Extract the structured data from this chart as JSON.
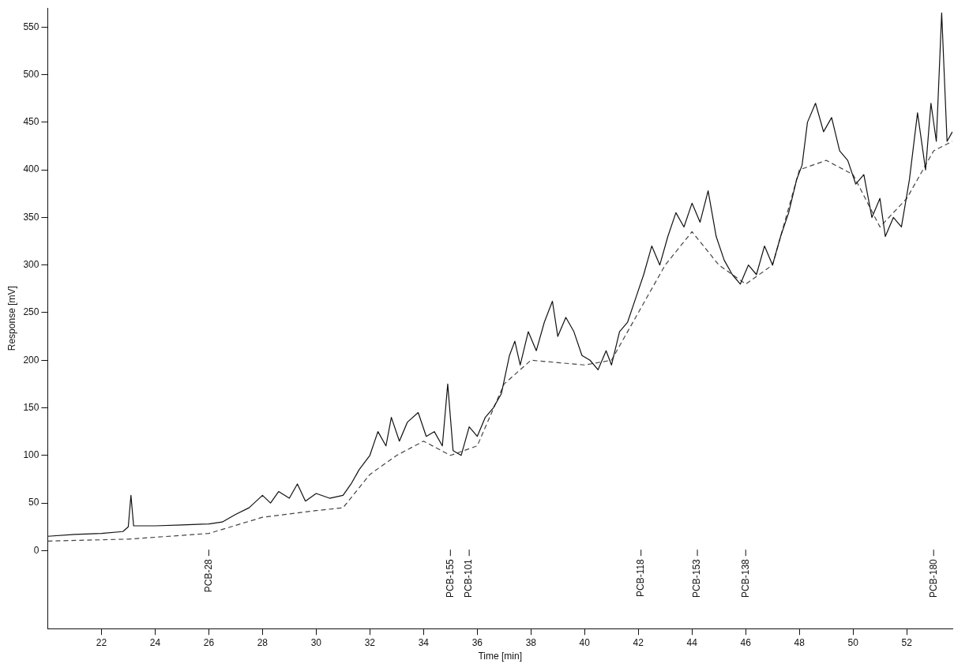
{
  "chart_data": {
    "type": "line",
    "xlabel": "Time [min]",
    "ylabel": "Response [mV]",
    "xlim": [
      20,
      53.7
    ],
    "ylim": [
      -82,
      570
    ],
    "xticks": [
      22,
      24,
      26,
      28,
      30,
      32,
      34,
      36,
      38,
      40,
      42,
      44,
      46,
      48,
      50,
      52
    ],
    "yticks": [
      0,
      50,
      100,
      150,
      200,
      250,
      300,
      350,
      400,
      450,
      500,
      550
    ],
    "grid": false,
    "legend": false,
    "marker": "none",
    "series": [
      {
        "color": "#111111",
        "line_style": "solid",
        "x": [
          20.0,
          21,
          22,
          22.8,
          23.0,
          23.1,
          23.2,
          24,
          25,
          26,
          26.5,
          27,
          27.5,
          28,
          28.3,
          28.6,
          29,
          29.3,
          29.6,
          30,
          30.5,
          31,
          31.3,
          31.6,
          32,
          32.3,
          32.6,
          32.8,
          33.1,
          33.4,
          33.8,
          34.1,
          34.4,
          34.7,
          34.9,
          35.1,
          35.4,
          35.7,
          36.0,
          36.3,
          36.6,
          36.9,
          37.2,
          37.4,
          37.6,
          37.9,
          38.2,
          38.5,
          38.8,
          39.0,
          39.3,
          39.6,
          39.9,
          40.2,
          40.5,
          40.8,
          41.0,
          41.3,
          41.6,
          41.9,
          42.2,
          42.5,
          42.8,
          43.1,
          43.4,
          43.7,
          44.0,
          44.3,
          44.6,
          44.9,
          45.2,
          45.5,
          45.8,
          46.1,
          46.4,
          46.7,
          47.0,
          47.3,
          47.6,
          47.9,
          48.1,
          48.3,
          48.6,
          48.9,
          49.2,
          49.5,
          49.8,
          50.1,
          50.4,
          50.7,
          51.0,
          51.2,
          51.5,
          51.8,
          52.1,
          52.4,
          52.7,
          52.9,
          53.1,
          53.3,
          53.5,
          53.7
        ],
        "values": [
          15,
          17,
          18,
          20,
          25,
          58,
          26,
          26,
          27,
          28,
          30,
          38,
          45,
          58,
          50,
          62,
          55,
          70,
          52,
          60,
          55,
          58,
          70,
          85,
          100,
          125,
          110,
          140,
          115,
          135,
          145,
          120,
          125,
          110,
          175,
          105,
          100,
          130,
          120,
          140,
          150,
          165,
          205,
          220,
          195,
          230,
          210,
          240,
          262,
          225,
          245,
          230,
          205,
          200,
          190,
          210,
          195,
          230,
          240,
          265,
          290,
          320,
          300,
          330,
          355,
          340,
          365,
          345,
          378,
          330,
          305,
          290,
          280,
          300,
          290,
          320,
          300,
          330,
          355,
          390,
          405,
          450,
          470,
          440,
          455,
          420,
          410,
          385,
          395,
          350,
          370,
          330,
          350,
          340,
          390,
          460,
          400,
          470,
          430,
          565,
          430,
          440
        ]
      },
      {
        "color": "#444444",
        "line_style": "dashed",
        "x": [
          20,
          23,
          26,
          28,
          30,
          31,
          32,
          33,
          34,
          35,
          36,
          37,
          38,
          40,
          41,
          42,
          43,
          44,
          45,
          46,
          47,
          48,
          49,
          50,
          51,
          52,
          53,
          53.7
        ],
        "values": [
          10,
          12,
          18,
          35,
          42,
          45,
          80,
          100,
          115,
          100,
          110,
          175,
          200,
          195,
          200,
          250,
          300,
          335,
          300,
          280,
          300,
          400,
          410,
          395,
          340,
          370,
          420,
          430
        ]
      }
    ],
    "ref_lines": [
      {
        "axis": "x",
        "value": 26.0,
        "label": "PCB-28"
      },
      {
        "axis": "x",
        "value": 35.0,
        "label": "PCB-155"
      },
      {
        "axis": "x",
        "value": 35.7,
        "label": "PCB-101"
      },
      {
        "axis": "x",
        "value": 42.1,
        "label": "PCB-118"
      },
      {
        "axis": "x",
        "value": 44.2,
        "label": "PCB-153"
      },
      {
        "axis": "x",
        "value": 46.0,
        "label": "PCB-138"
      },
      {
        "axis": "x",
        "value": 53.0,
        "label": "PCB-180"
      }
    ]
  }
}
